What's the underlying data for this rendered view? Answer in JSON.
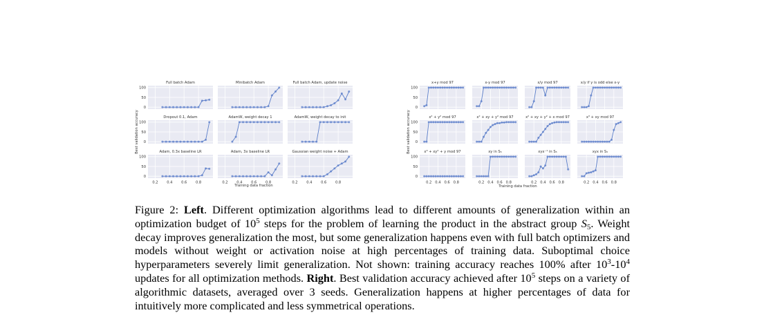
{
  "chart_data": [
    {
      "type": "scatter",
      "name": "left",
      "ylabel": "Best validation accuracy",
      "xlabel": "Training data fraction",
      "xticks": [
        "0.2",
        "0.4",
        "0.6",
        "0.8"
      ],
      "yticks": [
        "0",
        "50",
        "100"
      ],
      "xlim": [
        0.1,
        1.0
      ],
      "ylim": [
        -10,
        110
      ],
      "color": "#5b7ec9",
      "panels": [
        {
          "title": "Full batch Adam",
          "x": [
            0.3,
            0.35,
            0.4,
            0.45,
            0.5,
            0.55,
            0.6,
            0.65,
            0.7,
            0.75,
            0.8,
            0.85,
            0.9,
            0.95
          ],
          "values": [
            0,
            0,
            0,
            0,
            0,
            0,
            0,
            0,
            0,
            0,
            0,
            33,
            35,
            38
          ]
        },
        {
          "title": "Minibatch Adam",
          "x": [
            0.3,
            0.35,
            0.4,
            0.45,
            0.5,
            0.55,
            0.6,
            0.65,
            0.7,
            0.75,
            0.8,
            0.85,
            0.9,
            0.95
          ],
          "values": [
            0,
            0,
            0,
            0,
            0,
            0,
            0,
            0,
            0,
            0,
            5,
            60,
            80,
            100
          ]
        },
        {
          "title": "Full batch Adam, update noise",
          "x": [
            0.3,
            0.35,
            0.4,
            0.45,
            0.5,
            0.55,
            0.6,
            0.65,
            0.7,
            0.75,
            0.8,
            0.85,
            0.9,
            0.95
          ],
          "values": [
            0,
            0,
            0,
            0,
            0,
            0,
            0,
            5,
            10,
            20,
            35,
            70,
            40,
            80
          ]
        },
        {
          "title": "Dropout 0.1, Adam",
          "x": [
            0.3,
            0.35,
            0.4,
            0.45,
            0.5,
            0.55,
            0.6,
            0.65,
            0.7,
            0.75,
            0.8,
            0.85,
            0.9,
            0.95
          ],
          "values": [
            0,
            0,
            0,
            0,
            0,
            0,
            0,
            0,
            0,
            0,
            0,
            0,
            10,
            100
          ]
        },
        {
          "title": "AdamW, weight decay 1",
          "x": [
            0.3,
            0.35,
            0.4,
            0.45,
            0.5,
            0.55,
            0.6,
            0.65,
            0.7,
            0.75,
            0.8,
            0.85,
            0.9,
            0.95
          ],
          "values": [
            0,
            25,
            100,
            100,
            100,
            100,
            100,
            100,
            100,
            100,
            100,
            100,
            100,
            100
          ]
        },
        {
          "title": "AdamW, weight decay to init",
          "x": [
            0.3,
            0.35,
            0.4,
            0.45,
            0.5,
            0.55,
            0.6,
            0.65,
            0.7,
            0.75,
            0.8,
            0.85,
            0.9,
            0.95
          ],
          "values": [
            0,
            0,
            0,
            0,
            0,
            100,
            100,
            100,
            100,
            100,
            100,
            100,
            100,
            100
          ]
        },
        {
          "title": "Adam, 0.3x baseline LR",
          "x": [
            0.3,
            0.35,
            0.4,
            0.45,
            0.5,
            0.55,
            0.6,
            0.65,
            0.7,
            0.75,
            0.8,
            0.85,
            0.9,
            0.95
          ],
          "values": [
            0,
            0,
            0,
            0,
            0,
            0,
            0,
            0,
            0,
            0,
            0,
            5,
            40,
            38
          ]
        },
        {
          "title": "Adam, 3x baseline LR",
          "x": [
            0.3,
            0.35,
            0.4,
            0.45,
            0.5,
            0.55,
            0.6,
            0.65,
            0.7,
            0.75,
            0.8,
            0.85,
            0.9,
            0.95
          ],
          "values": [
            0,
            0,
            0,
            0,
            0,
            0,
            0,
            0,
            0,
            0,
            20,
            5,
            35,
            65
          ]
        },
        {
          "title": "Gaussian weight noise + Adam",
          "x": [
            0.3,
            0.35,
            0.4,
            0.45,
            0.5,
            0.55,
            0.6,
            0.65,
            0.7,
            0.75,
            0.8,
            0.85,
            0.9,
            0.95
          ],
          "values": [
            0,
            0,
            0,
            0,
            0,
            0,
            0,
            10,
            25,
            40,
            55,
            65,
            75,
            100
          ]
        }
      ]
    },
    {
      "type": "scatter",
      "name": "right",
      "ylabel": "Best validation accuracy",
      "xlabel": "Training data fraction",
      "xticks": [
        "0.2",
        "0.4",
        "0.6",
        "0.8"
      ],
      "yticks": [
        "0",
        "50",
        "100"
      ],
      "xlim": [
        0.0,
        1.0
      ],
      "ylim": [
        -10,
        110
      ],
      "color": "#5b7ec9",
      "panels": [
        {
          "title": "x+y mod 97",
          "x": [
            0.1,
            0.15,
            0.2,
            0.25,
            0.3,
            0.35,
            0.4,
            0.45,
            0.5,
            0.55,
            0.6,
            0.65,
            0.7,
            0.75,
            0.8,
            0.85,
            0.9,
            0.95
          ],
          "values": [
            5,
            10,
            100,
            100,
            100,
            100,
            100,
            100,
            100,
            100,
            100,
            100,
            100,
            100,
            100,
            100,
            100,
            100
          ]
        },
        {
          "title": "x-y mod 97",
          "x": [
            0.1,
            0.15,
            0.2,
            0.25,
            0.3,
            0.35,
            0.4,
            0.45,
            0.5,
            0.55,
            0.6,
            0.65,
            0.7,
            0.75,
            0.8,
            0.85,
            0.9,
            0.95
          ],
          "values": [
            5,
            5,
            30,
            100,
            100,
            100,
            100,
            100,
            100,
            100,
            100,
            100,
            100,
            100,
            100,
            100,
            100,
            100
          ]
        },
        {
          "title": "x/y mod 97",
          "x": [
            0.1,
            0.15,
            0.2,
            0.25,
            0.3,
            0.35,
            0.4,
            0.45,
            0.5,
            0.55,
            0.6,
            0.65,
            0.7,
            0.75,
            0.8,
            0.85,
            0.9,
            0.95
          ],
          "values": [
            0,
            0,
            30,
            100,
            100,
            100,
            100,
            60,
            100,
            100,
            100,
            100,
            100,
            100,
            100,
            100,
            100,
            100
          ]
        },
        {
          "title": "x/y if y is odd else x-y",
          "x": [
            0.1,
            0.15,
            0.2,
            0.25,
            0.3,
            0.35,
            0.4,
            0.45,
            0.5,
            0.55,
            0.6,
            0.65,
            0.7,
            0.75,
            0.8,
            0.85,
            0.9,
            0.95
          ],
          "values": [
            0,
            0,
            0,
            5,
            60,
            100,
            100,
            100,
            100,
            100,
            100,
            100,
            100,
            100,
            100,
            100,
            100,
            100
          ]
        },
        {
          "title": "x² + y² mod 97",
          "x": [
            0.1,
            0.15,
            0.2,
            0.25,
            0.3,
            0.35,
            0.4,
            0.45,
            0.5,
            0.55,
            0.6,
            0.65,
            0.7,
            0.75,
            0.8,
            0.85,
            0.9,
            0.95
          ],
          "values": [
            0,
            0,
            100,
            100,
            100,
            100,
            100,
            100,
            100,
            100,
            100,
            100,
            100,
            100,
            100,
            100,
            100,
            100
          ]
        },
        {
          "title": "x² + xy + y² mod 97",
          "x": [
            0.1,
            0.15,
            0.2,
            0.25,
            0.3,
            0.35,
            0.4,
            0.45,
            0.5,
            0.55,
            0.6,
            0.65,
            0.7,
            0.75,
            0.8,
            0.85,
            0.9,
            0.95
          ],
          "values": [
            0,
            0,
            0,
            25,
            45,
            60,
            75,
            85,
            90,
            95,
            95,
            98,
            98,
            100,
            100,
            100,
            100,
            100
          ]
        },
        {
          "title": "x² + xy + y² + x mod 97",
          "x": [
            0.1,
            0.15,
            0.2,
            0.25,
            0.3,
            0.35,
            0.4,
            0.45,
            0.5,
            0.55,
            0.6,
            0.65,
            0.7,
            0.75,
            0.8,
            0.85,
            0.9,
            0.95
          ],
          "values": [
            0,
            0,
            0,
            0,
            20,
            35,
            50,
            65,
            80,
            90,
            95,
            98,
            100,
            100,
            100,
            100,
            100,
            100
          ]
        },
        {
          "title": "x³ + xy mod 97",
          "x": [
            0.1,
            0.15,
            0.2,
            0.25,
            0.3,
            0.35,
            0.4,
            0.45,
            0.5,
            0.55,
            0.6,
            0.65,
            0.7,
            0.75,
            0.8,
            0.85,
            0.9,
            0.95
          ],
          "values": [
            0,
            0,
            0,
            0,
            0,
            0,
            0,
            0,
            0,
            0,
            0,
            0,
            0,
            10,
            60,
            90,
            95,
            100
          ]
        },
        {
          "title": "x³ + xy² + y mod 97",
          "x": [
            0.1,
            0.15,
            0.2,
            0.25,
            0.3,
            0.35,
            0.4,
            0.45,
            0.5,
            0.55,
            0.6,
            0.65,
            0.7,
            0.75,
            0.8,
            0.85,
            0.9,
            0.95
          ],
          "values": [
            0,
            0,
            0,
            0,
            0,
            0,
            0,
            0,
            0,
            0,
            0,
            0,
            0,
            0,
            0,
            0,
            0,
            0
          ]
        },
        {
          "title": "xy in S₅",
          "x": [
            0.1,
            0.15,
            0.2,
            0.25,
            0.3,
            0.35,
            0.4,
            0.45,
            0.5,
            0.55,
            0.6,
            0.65,
            0.7,
            0.75,
            0.8,
            0.85,
            0.9,
            0.95
          ],
          "values": [
            0,
            0,
            0,
            0,
            0,
            0,
            100,
            100,
            100,
            100,
            100,
            100,
            100,
            100,
            100,
            100,
            100,
            100
          ]
        },
        {
          "title": "xyx⁻¹ in S₅",
          "x": [
            0.1,
            0.15,
            0.2,
            0.25,
            0.3,
            0.35,
            0.4,
            0.45,
            0.5,
            0.55,
            0.6,
            0.65,
            0.7,
            0.75,
            0.8,
            0.85,
            0.9,
            0.95
          ],
          "values": [
            0,
            0,
            5,
            10,
            20,
            50,
            40,
            55,
            100,
            100,
            100,
            100,
            100,
            100,
            100,
            100,
            100,
            35
          ]
        },
        {
          "title": "xyx in S₅",
          "x": [
            0.1,
            0.15,
            0.2,
            0.25,
            0.3,
            0.35,
            0.4,
            0.45,
            0.5,
            0.55,
            0.6,
            0.65,
            0.7,
            0.75,
            0.8,
            0.85,
            0.9,
            0.95
          ],
          "values": [
            0,
            0,
            15,
            18,
            20,
            25,
            30,
            100,
            100,
            100,
            100,
            100,
            100,
            100,
            100,
            100,
            100,
            100
          ]
        }
      ]
    }
  ],
  "caption": {
    "fig_label": "Figure 2:",
    "left_bold": "Left",
    "left_text_1": ". Different optimization algorithms lead to different amounts of generalization within an optimization budget of 10",
    "exp5a": "5",
    "left_text_2": " steps for the problem of learning the product in the abstract group ",
    "group_S": "S",
    "group_sub": "5",
    "left_text_3": ". Weight decay improves generalization the most, but some generalization happens even with full batch optimizers and models without weight or activation noise at high percentages of training data. Suboptimal choice hyperparameters severely limit generalization. Not shown: training accuracy reaches 100% after 10",
    "exp3": "3",
    "dash": "-10",
    "exp4": "4",
    "left_text_4": " updates for all optimization methods. ",
    "right_bold": "Right",
    "right_text_1": ". Best validation accuracy achieved after 10",
    "exp5b": "5",
    "right_text_2": " steps on a variety of algorithmic datasets, averaged over 3 seeds. Generalization happens at higher percentages of data for intuitively more complicated and less symmetrical operations."
  }
}
